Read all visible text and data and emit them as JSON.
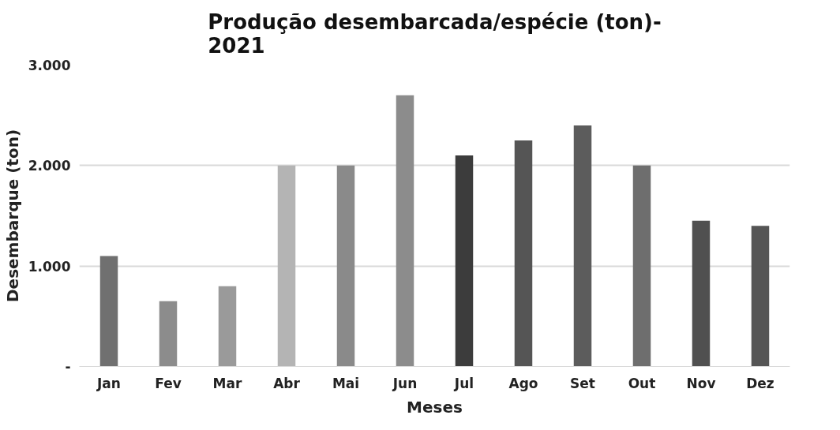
{
  "chart_data": {
    "type": "bar",
    "title": "Produção desembarcada/espécie (ton)-\n2021",
    "xlabel": "Meses",
    "ylabel": "Desembarque (ton)",
    "categories": [
      "Jan",
      "Fev",
      "Mar",
      "Abr",
      "Mai",
      "Jun",
      "Jul",
      "Ago",
      "Set",
      "Out",
      "Nov",
      "Dez"
    ],
    "values": [
      1100,
      650,
      800,
      2000,
      2000,
      2700,
      2100,
      2250,
      2400,
      2000,
      1450,
      1400
    ],
    "colors": [
      "#707070",
      "#8c8c8c",
      "#9a9a9a",
      "#b4b4b4",
      "#8a8a8a",
      "#8c8c8c",
      "#3c3c3c",
      "#555555",
      "#5c5c5c",
      "#6e6e6e",
      "#505050",
      "#555555"
    ],
    "ylim": [
      0,
      3000
    ],
    "yticks": [
      {
        "value": 0,
        "label": "-"
      },
      {
        "value": 1000,
        "label": "1.000"
      },
      {
        "value": 2000,
        "label": "2.000"
      },
      {
        "value": 3000,
        "label": "3.000"
      }
    ],
    "grid": "y"
  }
}
